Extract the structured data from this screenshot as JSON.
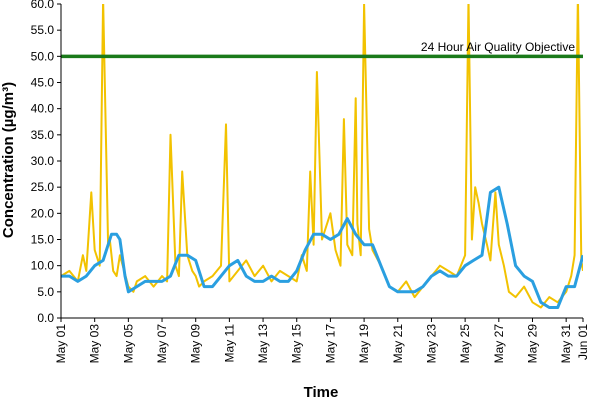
{
  "chart_data": {
    "type": "line",
    "xlabel": "Time",
    "ylabel": "Concentration (µg/m³)",
    "ylim": [
      0,
      60
    ],
    "y_ticks": [
      0,
      5,
      10,
      15,
      20,
      25,
      30,
      35,
      40,
      45,
      50,
      55,
      60
    ],
    "x_range": [
      "May 01",
      "Jun 01"
    ],
    "x_tick_labels": [
      "May 01",
      "May 03",
      "May 05",
      "May 07",
      "May 09",
      "May 11",
      "May 13",
      "May 15",
      "May 17",
      "May 19",
      "May 21",
      "May 23",
      "May 25",
      "May 27",
      "May 29",
      "May 31",
      "Jun 01"
    ],
    "x_tick_days": [
      0,
      2,
      4,
      6,
      8,
      10,
      12,
      14,
      16,
      18,
      20,
      22,
      24,
      26,
      28,
      30,
      31
    ],
    "grid": false,
    "objective": {
      "label": "24 Hour Air Quality Objective",
      "value": 50,
      "color": "#1a7a1a"
    },
    "series": [
      {
        "style": "hourly",
        "color": "#f2c200",
        "x": [
          0,
          0.5,
          1,
          1.3,
          1.5,
          1.8,
          2,
          2.3,
          2.5,
          2.8,
          2.9,
          3,
          3.1,
          3.3,
          3.5,
          4,
          4.3,
          4.5,
          5,
          5.5,
          6,
          6.3,
          6.5,
          6.8,
          7,
          7.2,
          7.5,
          7.8,
          8,
          8.2,
          8.5,
          9,
          9.5,
          9.8,
          10,
          10.5,
          11,
          11.5,
          12,
          12.5,
          13,
          13.5,
          14,
          14.3,
          14.6,
          14.8,
          15,
          15.2,
          15.5,
          16,
          16.3,
          16.6,
          16.8,
          17,
          17.3,
          17.5,
          17.6,
          17.8,
          18,
          18.3,
          18.5,
          19,
          19.5,
          20,
          20.5,
          21,
          21.5,
          22,
          22.5,
          23,
          23.5,
          24,
          24.2,
          24.4,
          24.6,
          24.8,
          25,
          25.3,
          25.5,
          25.8,
          26,
          26.3,
          26.6,
          27,
          27.5,
          28,
          28.5,
          29,
          29.5,
          30,
          30.3,
          30.5,
          30.7,
          30.9,
          31
        ],
        "y": [
          8,
          9,
          7,
          12,
          9,
          24,
          13,
          10,
          61,
          14,
          15,
          12,
          9,
          8,
          12,
          6,
          5,
          7,
          8,
          6,
          8,
          7,
          35,
          10,
          8,
          28,
          12,
          9,
          8,
          6,
          7,
          8,
          10,
          37,
          7,
          9,
          11,
          8,
          10,
          7,
          9,
          8,
          7,
          12,
          9,
          28,
          14,
          47,
          15,
          20,
          13,
          10,
          38,
          14,
          12,
          42,
          18,
          12,
          60,
          17,
          13,
          10,
          6,
          5,
          7,
          4,
          6,
          8,
          10,
          9,
          8,
          12,
          61,
          15,
          25,
          22,
          18,
          14,
          11,
          24,
          14,
          10,
          5,
          4,
          6,
          3,
          2,
          4,
          3,
          5,
          8,
          12,
          62,
          11,
          9
        ]
      },
      {
        "style": "running mean",
        "color": "#2a9fe0",
        "x": [
          0,
          0.5,
          1,
          1.5,
          2,
          2.5,
          3,
          3.3,
          3.5,
          3.8,
          4,
          4.5,
          5,
          5.5,
          6,
          6.5,
          7,
          7.5,
          8,
          8.5,
          9,
          9.5,
          10,
          10.5,
          11,
          11.5,
          12,
          12.5,
          13,
          13.5,
          14,
          14.5,
          15,
          15.5,
          16,
          16.5,
          17,
          17.5,
          18,
          18.5,
          19,
          19.5,
          20,
          20.5,
          21,
          21.5,
          22,
          22.5,
          23,
          23.5,
          24,
          24.5,
          25,
          25.5,
          26,
          26.5,
          27,
          27.5,
          28,
          28.5,
          29,
          29.5,
          30,
          30.5,
          31
        ],
        "y": [
          8,
          8,
          7,
          8,
          10,
          11,
          16,
          16,
          15,
          8,
          5,
          6,
          7,
          7,
          7,
          8,
          12,
          12,
          11,
          6,
          6,
          8,
          10,
          11,
          8,
          7,
          7,
          8,
          7,
          7,
          9,
          13,
          16,
          16,
          15,
          16,
          19,
          16,
          14,
          14,
          10,
          6,
          5,
          5,
          5,
          6,
          8,
          9,
          8,
          8,
          10,
          11,
          12,
          24,
          25,
          18,
          10,
          8,
          7,
          3,
          2,
          2,
          6,
          6,
          12
        ]
      }
    ]
  }
}
